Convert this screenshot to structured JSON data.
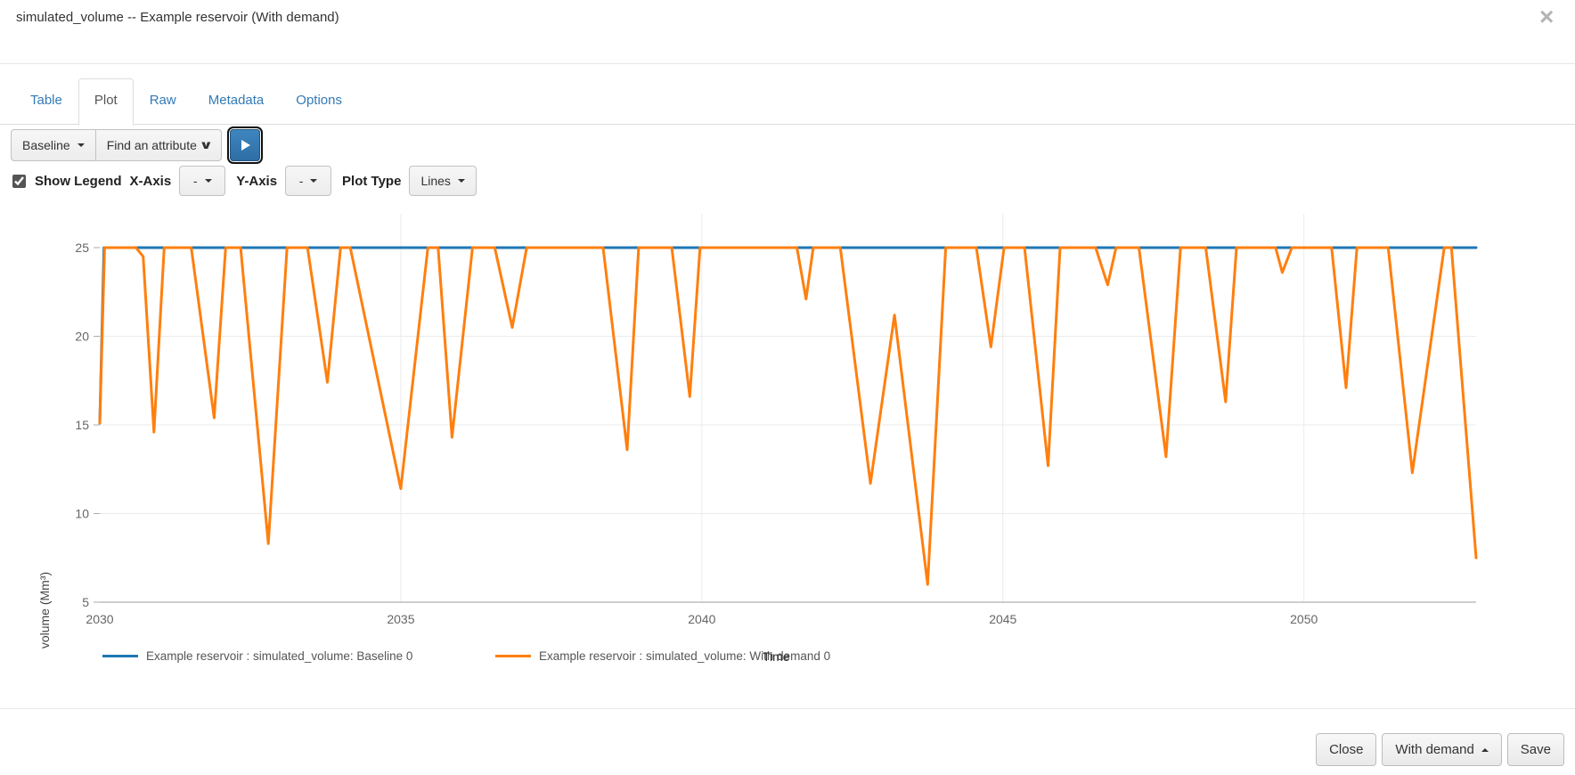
{
  "modal": {
    "title": "simulated_volume -- Example reservoir (With demand)",
    "close_icon": "×"
  },
  "tabs": [
    {
      "label": "Table",
      "active": false
    },
    {
      "label": "Plot",
      "active": true
    },
    {
      "label": "Raw",
      "active": false
    },
    {
      "label": "Metadata",
      "active": false
    },
    {
      "label": "Options",
      "active": false
    }
  ],
  "toolbar": {
    "scenario_dropdown_label": "Baseline",
    "attribute_select_label": "Find an attribute",
    "attribute_select_chevron": "∨",
    "play_button": "play"
  },
  "plot_controls": {
    "show_legend_label": "Show Legend",
    "show_legend_checked": true,
    "x_axis_label": "X-Axis",
    "x_axis_value": "-",
    "y_axis_label": "Y-Axis",
    "y_axis_value": "-",
    "plot_type_label": "Plot Type",
    "plot_type_value": "Lines"
  },
  "chart_data": {
    "type": "line",
    "title": "",
    "xlabel": "Time",
    "ylabel": "volume (Mm³)",
    "xlim": [
      2030,
      2052.86
    ],
    "ylim": [
      5,
      25
    ],
    "x_ticks": [
      2030,
      2035,
      2040,
      2045,
      2050
    ],
    "y_ticks": [
      5,
      10,
      15,
      20,
      25
    ],
    "grid": true,
    "legend_position": "bottom",
    "series": [
      {
        "name": "Example reservoir : simulated_volume: Baseline 0",
        "color": "#1f77b4",
        "points": [
          [
            2030.0,
            15.1
          ],
          [
            2030.07,
            25
          ],
          [
            2052.86,
            25
          ]
        ]
      },
      {
        "name": "Example reservoir : simulated_volume: With demand 0",
        "color": "#ff7f0e",
        "points": [
          [
            2030.0,
            15.1
          ],
          [
            2030.08,
            25
          ],
          [
            2030.6,
            25
          ],
          [
            2030.72,
            24.5
          ],
          [
            2030.9,
            14.6
          ],
          [
            2031.07,
            25
          ],
          [
            2031.52,
            25
          ],
          [
            2031.9,
            15.4
          ],
          [
            2032.09,
            25
          ],
          [
            2032.34,
            25
          ],
          [
            2032.8,
            8.3
          ],
          [
            2033.11,
            25
          ],
          [
            2033.45,
            25
          ],
          [
            2033.78,
            17.4
          ],
          [
            2034.0,
            25
          ],
          [
            2034.16,
            25
          ],
          [
            2035.0,
            11.4
          ],
          [
            2035.45,
            25
          ],
          [
            2035.62,
            25
          ],
          [
            2035.85,
            14.3
          ],
          [
            2036.19,
            25
          ],
          [
            2036.56,
            25
          ],
          [
            2036.85,
            20.5
          ],
          [
            2037.09,
            25
          ],
          [
            2038.36,
            25
          ],
          [
            2038.76,
            13.6
          ],
          [
            2038.95,
            25
          ],
          [
            2039.5,
            25
          ],
          [
            2039.8,
            16.6
          ],
          [
            2039.97,
            25
          ],
          [
            2041.58,
            25
          ],
          [
            2041.73,
            22.1
          ],
          [
            2041.85,
            25
          ],
          [
            2042.3,
            25
          ],
          [
            2042.8,
            11.7
          ],
          [
            2043.2,
            21.2
          ],
          [
            2043.75,
            6.0
          ],
          [
            2044.05,
            25
          ],
          [
            2044.56,
            25
          ],
          [
            2044.8,
            19.4
          ],
          [
            2045.02,
            25
          ],
          [
            2045.36,
            25
          ],
          [
            2045.75,
            12.7
          ],
          [
            2045.95,
            25
          ],
          [
            2046.54,
            25
          ],
          [
            2046.74,
            22.9
          ],
          [
            2046.88,
            25
          ],
          [
            2047.26,
            25
          ],
          [
            2047.71,
            13.2
          ],
          [
            2047.95,
            25
          ],
          [
            2048.37,
            25
          ],
          [
            2048.7,
            16.3
          ],
          [
            2048.88,
            25
          ],
          [
            2049.53,
            25
          ],
          [
            2049.64,
            23.6
          ],
          [
            2049.8,
            25
          ],
          [
            2050.46,
            25
          ],
          [
            2050.7,
            17.1
          ],
          [
            2050.88,
            25
          ],
          [
            2051.4,
            25
          ],
          [
            2051.8,
            12.3
          ],
          [
            2052.33,
            25
          ],
          [
            2052.45,
            25
          ],
          [
            2052.86,
            7.5
          ]
        ]
      }
    ]
  },
  "footer": {
    "close_button": "Close",
    "scenario_button": "With demand",
    "save_button": "Save"
  }
}
